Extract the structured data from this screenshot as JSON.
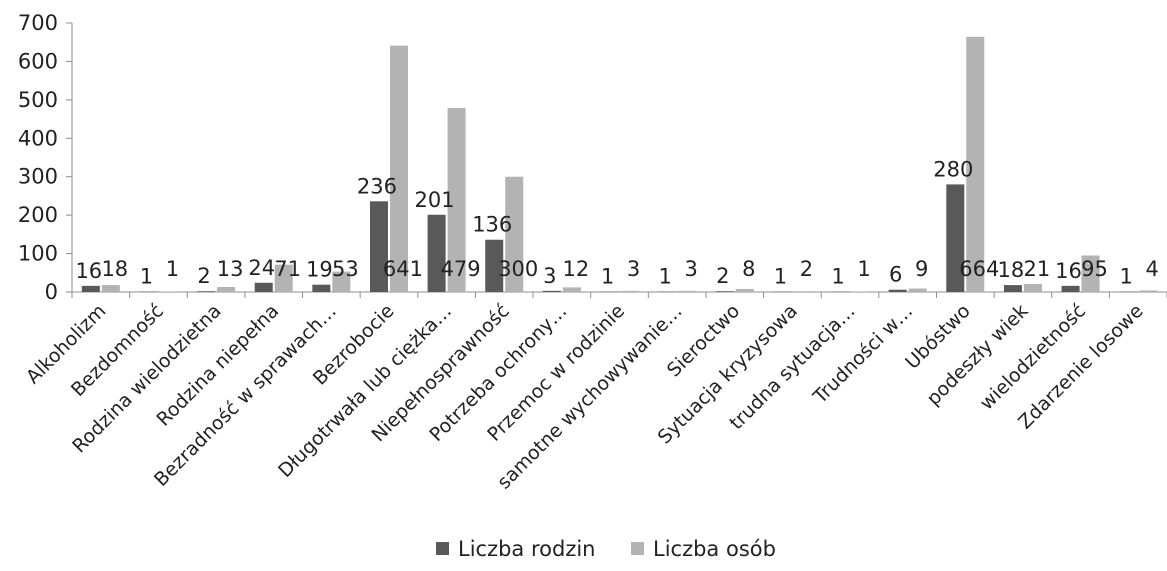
{
  "chart_data": {
    "type": "bar",
    "categories": [
      "Alkoholizm",
      "Bezdomność",
      "Rodzina wielodzietna",
      "Rodzina niepełna",
      "Bezradność w sprawach…",
      "Bezrobocie",
      "Długotrwała lub ciężka…",
      "Niepełnosprawność",
      "Potrzeba ochrony…",
      "Przemoc w rodzinie",
      "samotne wychowywanie…",
      "Sieroctwo",
      "Sytuacja kryzysowa",
      "trudna sytuacja…",
      "Trudności w…",
      "Ubóstwo",
      "podeszły wiek",
      "wielodzietność",
      "Zdarzenie losowe"
    ],
    "series": [
      {
        "name": "Liczba rodzin",
        "color": "#595959",
        "values": [
          16,
          1,
          2,
          24,
          19,
          236,
          201,
          136,
          3,
          1,
          1,
          2,
          1,
          1,
          6,
          280,
          18,
          16,
          1
        ],
        "labels": [
          "16",
          "1",
          "2",
          "24",
          "19",
          "236",
          "201",
          "136",
          "3",
          "1",
          "1",
          "2",
          "1",
          "1",
          "6",
          "280",
          "18",
          "16",
          "1"
        ]
      },
      {
        "name": "Liczba osób",
        "color": "#b3b3b3",
        "values": [
          18,
          1,
          13,
          71,
          53,
          641,
          479,
          300,
          12,
          3,
          3,
          8,
          2,
          1,
          9,
          664,
          21,
          95,
          4
        ],
        "labels": [
          "18",
          "1",
          "13",
          "71",
          "53",
          "641",
          "479",
          "300",
          "12",
          "3",
          "3",
          "8",
          "2",
          "1",
          "9",
          "664",
          "21",
          "95",
          "4"
        ]
      }
    ],
    "y_ticks": [
      "0",
      "100",
      "200",
      "300",
      "400",
      "500",
      "600",
      "700"
    ],
    "ylim": [
      0,
      700
    ],
    "legend_position": "bottom",
    "grid": false
  }
}
